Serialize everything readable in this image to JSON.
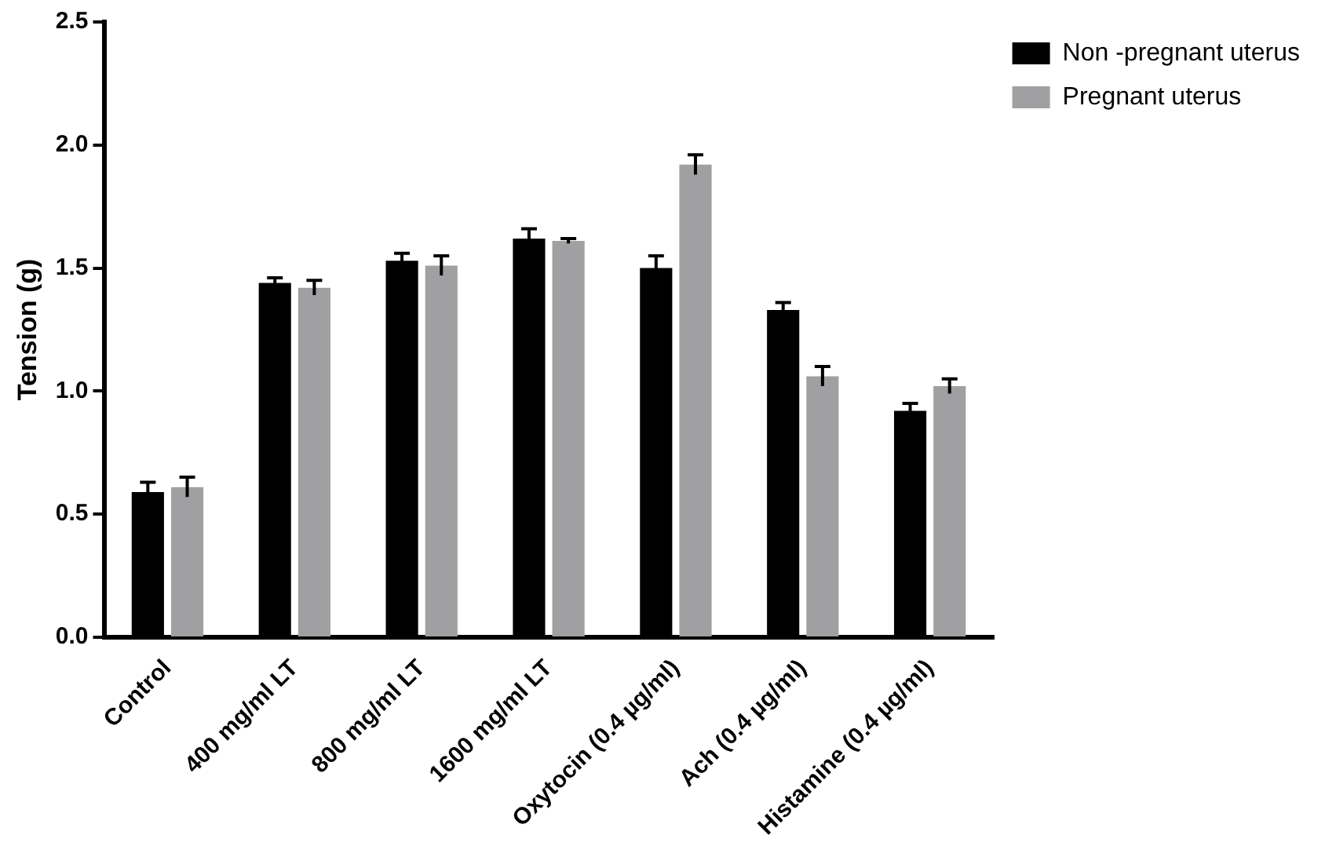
{
  "chart_data": {
    "type": "bar",
    "ylabel": "Tension (g)",
    "categories": [
      "Control",
      "400 mg/ml LT",
      "800 mg/ml LT",
      "1600 mg/ml LT",
      "Oxytocin (0.4 µg/ml)",
      "Ach (0.4 µg/ml)",
      "Histamine (0.4 µg/ml)"
    ],
    "series": [
      {
        "name": "Non -pregnant uterus",
        "color": "#000000",
        "values": [
          0.59,
          1.44,
          1.53,
          1.62,
          1.5,
          1.33,
          0.92
        ],
        "errors": [
          0.04,
          0.02,
          0.03,
          0.04,
          0.05,
          0.03,
          0.03
        ]
      },
      {
        "name": "Pregnant uterus",
        "color": "#a0a0a2",
        "values": [
          0.61,
          1.42,
          1.51,
          1.61,
          1.92,
          1.06,
          1.02
        ],
        "errors": [
          0.04,
          0.03,
          0.04,
          0.01,
          0.04,
          0.04,
          0.03
        ]
      }
    ],
    "ylim": [
      0,
      2.5
    ],
    "yticks": [
      {
        "value": 0,
        "label": "0.0"
      },
      {
        "value": 0.5,
        "label": "0.5"
      },
      {
        "value": 1,
        "label": "1.0"
      },
      {
        "value": 1.5,
        "label": "1.5"
      },
      {
        "value": 2,
        "label": "2.0"
      },
      {
        "value": 2.5,
        "label": "2.5"
      }
    ],
    "grid": false,
    "legend": "top right"
  }
}
